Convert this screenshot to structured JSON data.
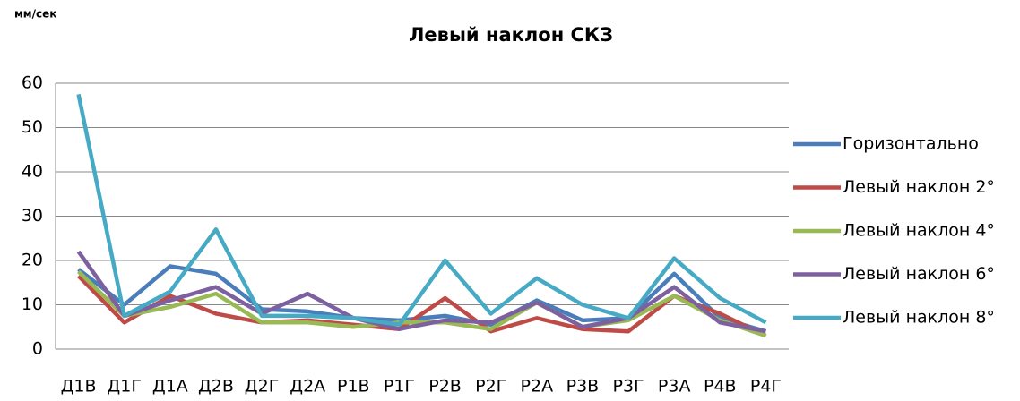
{
  "chart_data": {
    "type": "line",
    "title": "Левый наклон СКЗ",
    "y_label": "мм/сек",
    "categories": [
      "Д1В",
      "Д1Г",
      "Д1А",
      "Д2В",
      "Д2Г",
      "Д2А",
      "Р1В",
      "Р1Г",
      "Р2В",
      "Р2Г",
      "Р2А",
      "Р3В",
      "Р3Г",
      "Р3А",
      "Р4В",
      "Р4Г"
    ],
    "series": [
      {
        "name": "Горизонтально",
        "color": "#4a7ebb",
        "values": [
          18,
          10,
          18.7,
          17,
          9,
          8.5,
          7,
          6.5,
          7.5,
          5.5,
          11,
          6.5,
          7,
          17,
          7,
          4
        ]
      },
      {
        "name": "Левый наклон 2°",
        "color": "#be4b48",
        "values": [
          16.5,
          6,
          12,
          8,
          6,
          6.5,
          5.5,
          4.5,
          11.5,
          4,
          7,
          4.5,
          4,
          12,
          8,
          3
        ]
      },
      {
        "name": "Левый наклон 4°",
        "color": "#98b954",
        "values": [
          17.5,
          7.5,
          9.5,
          12.5,
          6,
          6,
          5,
          6,
          6,
          4.5,
          10.5,
          5,
          6.5,
          12,
          6.5,
          3
        ]
      },
      {
        "name": "Левый наклон 6°",
        "color": "#7d60a0",
        "values": [
          22,
          7.5,
          11,
          14,
          8,
          12.5,
          7,
          4.5,
          6.5,
          6,
          10.5,
          5,
          7,
          14,
          6,
          4
        ]
      },
      {
        "name": "Левый наклон 8°",
        "color": "#46aac5",
        "values": [
          57.5,
          7.5,
          13,
          27,
          7.5,
          7.5,
          7,
          5.5,
          20,
          8,
          16,
          10,
          7,
          20.5,
          11.5,
          6
        ]
      }
    ],
    "ylim": [
      0,
      60
    ],
    "yticks": [
      0,
      10,
      20,
      30,
      40,
      50,
      60
    ],
    "grid": true,
    "legend": "right"
  }
}
